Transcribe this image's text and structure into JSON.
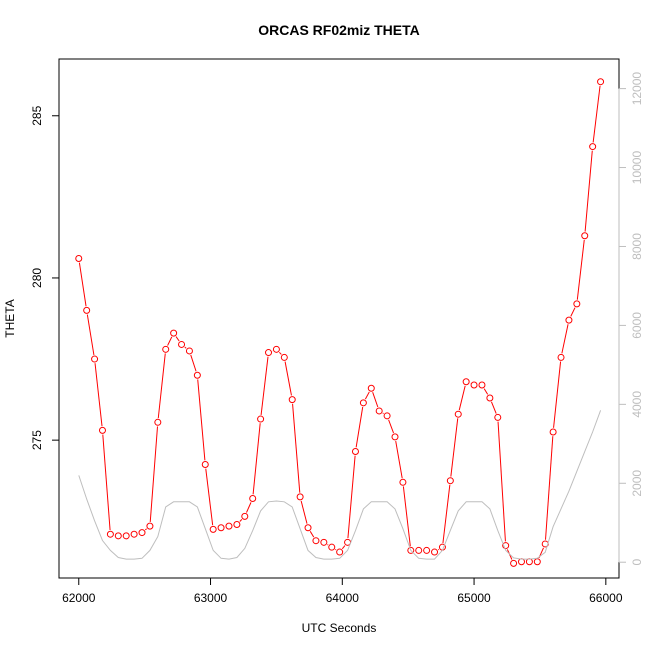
{
  "chart_data": {
    "type": "line",
    "title": "ORCAS RF02miz THETA",
    "xlabel": "UTC Seconds",
    "ylabel": "THETA",
    "xlim": [
      61850,
      66100
    ],
    "ylim": [
      270.75,
      286.75
    ],
    "y2lim": [
      -400,
      12750
    ],
    "x_ticks": [
      62000,
      63000,
      64000,
      65000,
      66000
    ],
    "y_ticks": [
      275,
      280,
      285
    ],
    "y2_ticks": [
      0,
      2000,
      4000,
      6000,
      8000,
      10000,
      12000
    ],
    "colors": {
      "theta": "#ff0000",
      "altitude": "#bebebe",
      "axis": "#000000",
      "right_axis": "#bebebe"
    },
    "series": [
      {
        "axis": "left",
        "markers": "open-circle",
        "points": [
          [
            62000,
            280.6
          ],
          [
            62060,
            279.0
          ],
          [
            62120,
            277.5
          ],
          [
            62180,
            275.3
          ],
          [
            62240,
            272.1
          ],
          [
            62300,
            272.05
          ],
          [
            62360,
            272.05
          ],
          [
            62420,
            272.1
          ],
          [
            62480,
            272.15
          ],
          [
            62540,
            272.35
          ],
          [
            62600,
            275.55
          ],
          [
            62660,
            277.8
          ],
          [
            62720,
            278.3
          ],
          [
            62780,
            277.95
          ],
          [
            62840,
            277.75
          ],
          [
            62900,
            277.0
          ],
          [
            62960,
            274.25
          ],
          [
            63020,
            272.25
          ],
          [
            63080,
            272.3
          ],
          [
            63140,
            272.35
          ],
          [
            63200,
            272.4
          ],
          [
            63260,
            272.65
          ],
          [
            63320,
            273.2
          ],
          [
            63380,
            275.65
          ],
          [
            63440,
            277.7
          ],
          [
            63500,
            277.8
          ],
          [
            63560,
            277.55
          ],
          [
            63620,
            276.25
          ],
          [
            63680,
            273.25
          ],
          [
            63740,
            272.3
          ],
          [
            63800,
            271.9
          ],
          [
            63860,
            271.85
          ],
          [
            63920,
            271.7
          ],
          [
            63980,
            271.55
          ],
          [
            64040,
            271.85
          ],
          [
            64100,
            274.65
          ],
          [
            64160,
            276.15
          ],
          [
            64220,
            276.6
          ],
          [
            64280,
            275.9
          ],
          [
            64340,
            275.75
          ],
          [
            64400,
            275.1
          ],
          [
            64460,
            273.7
          ],
          [
            64520,
            271.6
          ],
          [
            64580,
            271.6
          ],
          [
            64640,
            271.6
          ],
          [
            64700,
            271.55
          ],
          [
            64760,
            271.7
          ],
          [
            64820,
            273.75
          ],
          [
            64880,
            275.8
          ],
          [
            64940,
            276.8
          ],
          [
            65000,
            276.7
          ],
          [
            65060,
            276.7
          ],
          [
            65120,
            276.3
          ],
          [
            65180,
            275.7
          ],
          [
            65240,
            271.75
          ],
          [
            65300,
            271.2
          ],
          [
            65360,
            271.25
          ],
          [
            65420,
            271.25
          ],
          [
            65480,
            271.25
          ],
          [
            65540,
            271.8
          ],
          [
            65600,
            275.25
          ],
          [
            65660,
            277.55
          ],
          [
            65720,
            278.7
          ],
          [
            65780,
            279.2
          ],
          [
            65840,
            281.3
          ],
          [
            65900,
            284.05
          ],
          [
            65960,
            286.05
          ]
        ]
      },
      {
        "axis": "right",
        "markers": "none",
        "points": [
          [
            62000,
            2200
          ],
          [
            62060,
            1600
          ],
          [
            62120,
            1050
          ],
          [
            62180,
            550
          ],
          [
            62240,
            300
          ],
          [
            62300,
            120
          ],
          [
            62360,
            80
          ],
          [
            62420,
            80
          ],
          [
            62480,
            100
          ],
          [
            62540,
            300
          ],
          [
            62600,
            650
          ],
          [
            62660,
            1400
          ],
          [
            62720,
            1530
          ],
          [
            62780,
            1530
          ],
          [
            62840,
            1530
          ],
          [
            62900,
            1400
          ],
          [
            62960,
            850
          ],
          [
            63020,
            300
          ],
          [
            63080,
            100
          ],
          [
            63140,
            80
          ],
          [
            63200,
            120
          ],
          [
            63260,
            350
          ],
          [
            63320,
            800
          ],
          [
            63380,
            1300
          ],
          [
            63440,
            1530
          ],
          [
            63500,
            1550
          ],
          [
            63560,
            1530
          ],
          [
            63620,
            1400
          ],
          [
            63680,
            850
          ],
          [
            63740,
            300
          ],
          [
            63800,
            120
          ],
          [
            63860,
            80
          ],
          [
            63920,
            80
          ],
          [
            63980,
            100
          ],
          [
            64040,
            300
          ],
          [
            64100,
            800
          ],
          [
            64160,
            1350
          ],
          [
            64220,
            1530
          ],
          [
            64280,
            1530
          ],
          [
            64340,
            1530
          ],
          [
            64400,
            1350
          ],
          [
            64460,
            850
          ],
          [
            64520,
            300
          ],
          [
            64580,
            100
          ],
          [
            64640,
            80
          ],
          [
            64700,
            80
          ],
          [
            64760,
            300
          ],
          [
            64820,
            800
          ],
          [
            64880,
            1300
          ],
          [
            64940,
            1530
          ],
          [
            65000,
            1530
          ],
          [
            65060,
            1530
          ],
          [
            65120,
            1350
          ],
          [
            65180,
            800
          ],
          [
            65240,
            300
          ],
          [
            65300,
            110
          ],
          [
            65360,
            80
          ],
          [
            65420,
            80
          ],
          [
            65480,
            100
          ],
          [
            65540,
            250
          ],
          [
            65600,
            900
          ],
          [
            65660,
            1350
          ],
          [
            65720,
            1800
          ],
          [
            65780,
            2300
          ],
          [
            65840,
            2800
          ],
          [
            65900,
            3300
          ],
          [
            65960,
            3850
          ]
        ]
      }
    ]
  }
}
